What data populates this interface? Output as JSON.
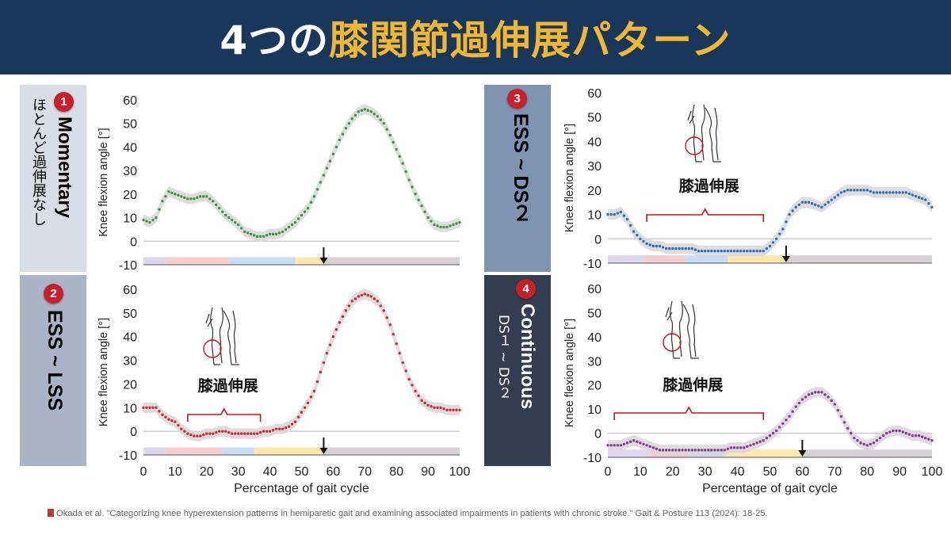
{
  "header": {
    "title_white_1": "4つの",
    "title_yellow": "膝関節過伸展パターン",
    "title_white_2": ""
  },
  "panels": [
    {
      "badge": "1",
      "title": "Momentary",
      "subtitle": "ほとんど過伸展なし",
      "bg": "#d9dde6",
      "fg": "#000000"
    },
    {
      "badge": "2",
      "title": "ESS ~ LSS",
      "subtitle": "",
      "bg": "#a9b4c6",
      "fg": "#000000"
    },
    {
      "badge": "3",
      "title": "ESS ~ DS２",
      "subtitle": "",
      "bg": "#7f94b0",
      "fg": "#000000"
    },
    {
      "badge": "4",
      "title": "Continuous",
      "subtitle": "DS１ ~ DS２",
      "bg": "#323d4e",
      "fg": "#ffffff"
    }
  ],
  "hyperextension_label": "膝過伸展",
  "citation": "Okada et al. \"Categorizing knee hyperextension patterns in hemiparetic gait and examining associated impairments in patients with chronic stroke.\" Gait & Posture 113 (2024): 18-25.",
  "chart_data": [
    {
      "type": "line",
      "ylabel": "Knee flexion angle [°]",
      "xlabel": "",
      "ylim": [
        -10,
        60
      ],
      "yticks": [
        -10,
        0,
        10,
        20,
        30,
        40,
        50,
        60
      ],
      "xlim": [
        0,
        100
      ],
      "xticks": [],
      "color": "#3a9a3a",
      "arrow_x": 57,
      "hyperextension_range": null,
      "phase_bar": [
        {
          "from": 0,
          "to": 7,
          "color": "#dcd6ee"
        },
        {
          "from": 7,
          "to": 27,
          "color": "#f7cccc"
        },
        {
          "from": 27,
          "to": 48,
          "color": "#c7dcf5"
        },
        {
          "from": 48,
          "to": 57,
          "color": "#fde7ad"
        },
        {
          "from": 57,
          "to": 100,
          "color": "#d6d1d4"
        }
      ],
      "series": [
        {
          "x": [
            0,
            2,
            4,
            6,
            8,
            10,
            12,
            14,
            16,
            18,
            20,
            22,
            24,
            26,
            28,
            30,
            32,
            34,
            36,
            38,
            40,
            42,
            44,
            46,
            48,
            50,
            52,
            54,
            56,
            58,
            60,
            62,
            64,
            66,
            68,
            70,
            72,
            74,
            76,
            78,
            80,
            82,
            84,
            86,
            88,
            90,
            92,
            94,
            96,
            98,
            100
          ],
          "y": [
            9,
            8,
            10,
            17,
            21,
            20,
            19,
            18,
            18,
            19,
            19,
            17,
            14,
            11,
            9,
            7,
            4,
            3,
            2,
            2,
            3,
            3,
            4,
            6,
            8,
            11,
            14,
            19,
            25,
            31,
            37,
            43,
            48,
            52,
            55,
            56,
            55,
            53,
            50,
            45,
            39,
            33,
            26,
            20,
            15,
            10,
            7,
            6,
            6,
            7,
            8
          ]
        }
      ]
    },
    {
      "type": "line",
      "ylabel": "Knee flexion angle [°]",
      "xlabel": "Percentage of gait cycle",
      "ylim": [
        -10,
        60
      ],
      "yticks": [
        -10,
        0,
        10,
        20,
        30,
        40,
        50,
        60
      ],
      "xlim": [
        0,
        100
      ],
      "xticks": [
        0,
        10,
        20,
        30,
        40,
        50,
        60,
        70,
        80,
        90,
        100
      ],
      "color": "#d42a2a",
      "arrow_x": 57,
      "hyperextension_range": [
        14,
        37
      ],
      "phase_bar": [
        {
          "from": 0,
          "to": 7,
          "color": "#dcd6ee"
        },
        {
          "from": 7,
          "to": 25,
          "color": "#f7cccc"
        },
        {
          "from": 25,
          "to": 35,
          "color": "#c7dcf5"
        },
        {
          "from": 35,
          "to": 57,
          "color": "#fde7ad"
        },
        {
          "from": 57,
          "to": 100,
          "color": "#d6d1d4"
        }
      ],
      "series": [
        {
          "x": [
            0,
            2,
            4,
            6,
            8,
            10,
            12,
            14,
            16,
            18,
            20,
            22,
            24,
            26,
            28,
            30,
            32,
            34,
            36,
            38,
            40,
            42,
            44,
            46,
            48,
            50,
            52,
            54,
            56,
            58,
            60,
            62,
            64,
            66,
            68,
            70,
            72,
            74,
            76,
            78,
            80,
            82,
            84,
            86,
            88,
            90,
            92,
            94,
            96,
            98,
            100
          ],
          "y": [
            10,
            10,
            10,
            7,
            5,
            4,
            1,
            -1,
            -2,
            -2,
            -1,
            -1,
            0,
            0,
            -1,
            -1,
            -1,
            -1,
            -1,
            0,
            0,
            1,
            1,
            2,
            4,
            8,
            12,
            17,
            25,
            33,
            40,
            46,
            51,
            55,
            57,
            58,
            57,
            55,
            51,
            45,
            37,
            29,
            22,
            17,
            13,
            11,
            10,
            10,
            9,
            9,
            9
          ]
        }
      ]
    },
    {
      "type": "line",
      "ylabel": "Knee flexion angle [°]",
      "xlabel": "",
      "ylim": [
        -10,
        60
      ],
      "yticks": [
        -10,
        0,
        10,
        20,
        30,
        40,
        50,
        60
      ],
      "xlim": [
        0,
        100
      ],
      "xticks": [],
      "color": "#2a72b8",
      "arrow_x": 55,
      "hyperextension_range": [
        12,
        48
      ],
      "phase_bar": [
        {
          "from": 0,
          "to": 11,
          "color": "#dcd6ee"
        },
        {
          "from": 11,
          "to": 24,
          "color": "#f7cccc"
        },
        {
          "from": 24,
          "to": 37,
          "color": "#c7dcf5"
        },
        {
          "from": 37,
          "to": 55,
          "color": "#fde7ad"
        },
        {
          "from": 55,
          "to": 100,
          "color": "#d6d1d4"
        }
      ],
      "series": [
        {
          "x": [
            0,
            2,
            4,
            6,
            8,
            10,
            12,
            14,
            16,
            18,
            20,
            22,
            24,
            26,
            28,
            30,
            32,
            34,
            36,
            38,
            40,
            42,
            44,
            46,
            48,
            50,
            52,
            54,
            56,
            58,
            60,
            62,
            64,
            66,
            68,
            70,
            72,
            74,
            76,
            78,
            80,
            82,
            84,
            86,
            88,
            90,
            92,
            94,
            96,
            98,
            100
          ],
          "y": [
            10,
            10,
            11,
            8,
            3,
            0,
            -2,
            -3,
            -3,
            -4,
            -4,
            -4,
            -4,
            -4,
            -5,
            -5,
            -5,
            -5,
            -5,
            -5,
            -5,
            -5,
            -5,
            -5,
            -5,
            -3,
            0,
            4,
            10,
            13,
            15,
            15,
            14,
            13,
            15,
            17,
            19,
            20,
            20,
            20,
            20,
            19,
            19,
            19,
            19,
            19,
            19,
            18,
            17,
            16,
            13
          ]
        }
      ]
    },
    {
      "type": "line",
      "ylabel": "Knee flexion angle [°]",
      "xlabel": "Percentage of gait cycle",
      "ylim": [
        -10,
        60
      ],
      "yticks": [
        -10,
        0,
        10,
        20,
        30,
        40,
        50,
        60
      ],
      "xlim": [
        0,
        100
      ],
      "xticks": [
        0,
        10,
        20,
        30,
        40,
        50,
        60,
        70,
        80,
        90,
        100
      ],
      "color": "#8a3a9a",
      "arrow_x": 60,
      "hyperextension_range": [
        2,
        48
      ],
      "phase_bar": [
        {
          "from": 0,
          "to": 13,
          "color": "#dcd6ee"
        },
        {
          "from": 13,
          "to": 25,
          "color": "#f7cccc"
        },
        {
          "from": 25,
          "to": 36,
          "color": "#c7dcf5"
        },
        {
          "from": 36,
          "to": 60,
          "color": "#fde7ad"
        },
        {
          "from": 60,
          "to": 100,
          "color": "#d6d1d4"
        }
      ],
      "series": [
        {
          "x": [
            0,
            2,
            4,
            6,
            8,
            10,
            12,
            14,
            16,
            18,
            20,
            22,
            24,
            26,
            28,
            30,
            32,
            34,
            36,
            38,
            40,
            42,
            44,
            46,
            48,
            50,
            52,
            54,
            56,
            58,
            60,
            62,
            64,
            66,
            68,
            70,
            72,
            74,
            76,
            78,
            80,
            82,
            84,
            86,
            88,
            90,
            92,
            94,
            96,
            98,
            100
          ],
          "y": [
            -5,
            -5,
            -5,
            -4,
            -3,
            -4,
            -5,
            -6,
            -7,
            -7,
            -7,
            -7,
            -7,
            -7,
            -7,
            -7,
            -7,
            -7,
            -7,
            -6,
            -6,
            -6,
            -5,
            -4,
            -3,
            -1,
            1,
            4,
            7,
            11,
            14,
            16,
            17,
            17,
            15,
            12,
            7,
            2,
            -2,
            -4,
            -5,
            -4,
            -2,
            0,
            1,
            1,
            0,
            -1,
            -1,
            -2,
            -3
          ]
        }
      ]
    }
  ]
}
